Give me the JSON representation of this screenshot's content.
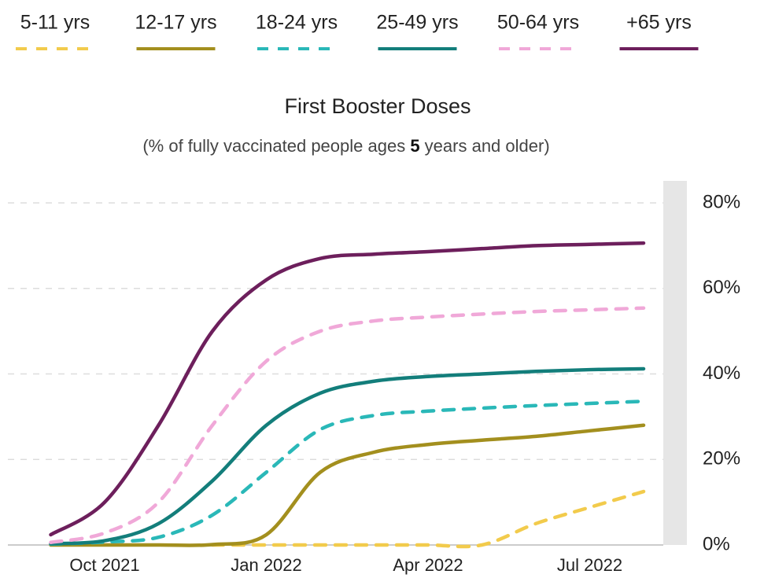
{
  "chart_data": {
    "type": "line",
    "title": "First Booster Doses",
    "subtitle": [
      "(% of fully vaccinated people ages ",
      "5",
      " years and older)"
    ],
    "x": [
      "2021-09",
      "2021-10",
      "2021-11",
      "2021-12",
      "2022-01",
      "2022-02",
      "2022-03",
      "2022-04",
      "2022-05",
      "2022-06",
      "2022-07",
      "2022-08"
    ],
    "xlim": [
      "2021-08",
      "2022-09"
    ],
    "xticks": [
      {
        "value": "2021-10",
        "label": "Oct 2021"
      },
      {
        "value": "2022-01",
        "label": "Jan 2022"
      },
      {
        "value": "2022-04",
        "label": "Apr 2022"
      },
      {
        "value": "2022-07",
        "label": "Jul 2022"
      }
    ],
    "ylim": [
      0,
      80
    ],
    "yticks": [
      {
        "value": 0,
        "label": "0%"
      },
      {
        "value": 20,
        "label": "20%"
      },
      {
        "value": 40,
        "label": "40%"
      },
      {
        "value": 60,
        "label": "60%"
      },
      {
        "value": 80,
        "label": "80%"
      }
    ],
    "grid": true,
    "legend": "top",
    "series": [
      {
        "name": "5-11 yrs",
        "color": "#f2cb4c",
        "dash": true,
        "values": [
          null,
          null,
          null,
          0,
          0,
          0,
          0,
          0,
          0,
          5,
          8.8,
          12.5
        ]
      },
      {
        "name": "12-17 yrs",
        "color": "#a38f1e",
        "dash": false,
        "values": [
          0,
          0,
          0,
          0.1,
          2.4,
          17,
          21.7,
          23.5,
          24.5,
          25.4,
          26.7,
          28
        ]
      },
      {
        "name": "18-24 yrs",
        "color": "#2ab8b8",
        "dash": true,
        "values": [
          0.2,
          0.7,
          1.8,
          7,
          17,
          27,
          30.3,
          31.3,
          32,
          32.6,
          33.1,
          33.6
        ]
      },
      {
        "name": "25-49 yrs",
        "color": "#137e7b",
        "dash": false,
        "values": [
          0.3,
          1,
          5,
          15,
          28,
          35.5,
          38.3,
          39.4,
          40,
          40.6,
          41,
          41.2
        ]
      },
      {
        "name": "50-64 yrs",
        "color": "#f0a8d8",
        "dash": true,
        "values": [
          0.6,
          2.8,
          10,
          28,
          43,
          50,
          52.4,
          53.3,
          54,
          54.6,
          55,
          55.4
        ]
      },
      {
        "name": "+65 yrs",
        "color": "#6d1f5c",
        "dash": false,
        "values": [
          2.4,
          10,
          28,
          50,
          62,
          67,
          68,
          68.6,
          69.3,
          70,
          70.3,
          70.6
        ]
      }
    ]
  }
}
